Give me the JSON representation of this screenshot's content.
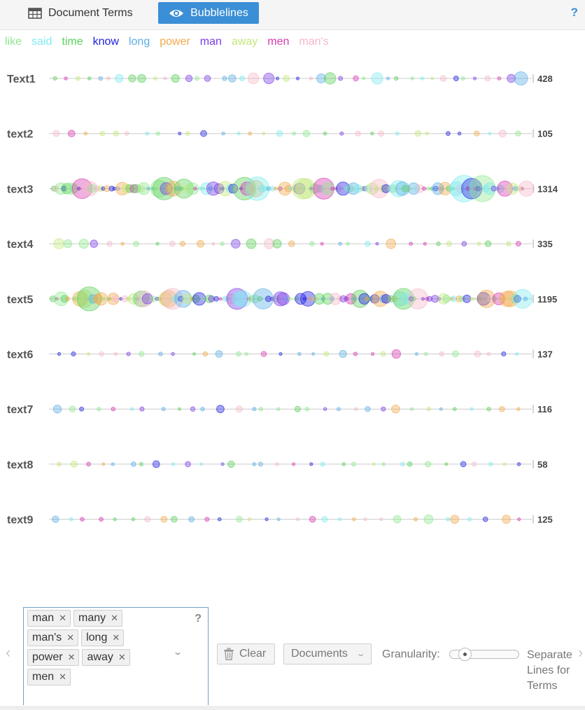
{
  "tabs": [
    {
      "label": "Document Terms",
      "active": false,
      "icon": "table-icon"
    },
    {
      "label": "Bubblelines",
      "active": true,
      "icon": "eye-icon"
    }
  ],
  "help_label": "?",
  "legend": [
    {
      "term": "like",
      "color": "#8ee88e"
    },
    {
      "term": "said",
      "color": "#7eeaf0"
    },
    {
      "term": "time",
      "color": "#5ad05a"
    },
    {
      "term": "know",
      "color": "#2020e0"
    },
    {
      "term": "long",
      "color": "#5aaee6"
    },
    {
      "term": "power",
      "color": "#f2a94a"
    },
    {
      "term": "man",
      "color": "#7a3de6"
    },
    {
      "term": "away",
      "color": "#c4e87a"
    },
    {
      "term": "men",
      "color": "#d838b0"
    },
    {
      "term": "man's",
      "color": "#f4b8c8"
    }
  ],
  "documents": [
    {
      "name": "Text1",
      "count": "428"
    },
    {
      "name": "text2",
      "count": "105"
    },
    {
      "name": "text3",
      "count": "1314"
    },
    {
      "name": "text4",
      "count": "335"
    },
    {
      "name": "text5",
      "count": "1195"
    },
    {
      "name": "text6",
      "count": "137"
    },
    {
      "name": "text7",
      "count": "116"
    },
    {
      "name": "text8",
      "count": "58"
    },
    {
      "name": "text9",
      "count": "125"
    }
  ],
  "terms_box": {
    "tags": [
      "man",
      "many",
      "man's",
      "long",
      "power",
      "away",
      "men"
    ],
    "help": "?"
  },
  "clear_label": "Clear",
  "documents_select": "Documents",
  "granularity_label": "Granularity:",
  "granularity_level": 0.15,
  "separate_lines_label": "Separate Lines for Terms"
}
